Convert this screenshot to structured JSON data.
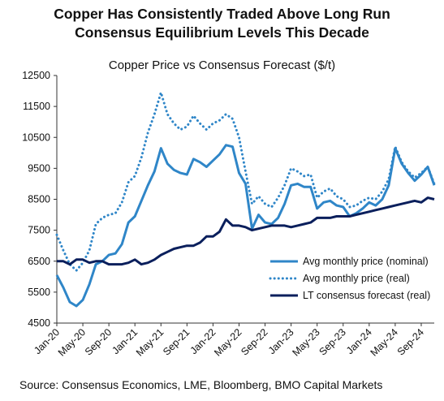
{
  "chart_data": {
    "type": "line",
    "title_line1": "Copper Has Consistently Traded Above Long Run",
    "title_line2": "Consensus Equilibrium Levels This Decade",
    "subtitle": "Copper Price vs Consensus Forecast ($/t)",
    "source": "Source: Consensus Economics, LME, Bloomberg, BMO Capital Markets",
    "x_start": "2020-01",
    "ylim": [
      4500,
      12500
    ],
    "yticks": [
      4500,
      5500,
      6500,
      7500,
      8500,
      9500,
      10500,
      11500,
      12500
    ],
    "xtick_labels": [
      "Jan-20",
      "May-20",
      "Sep-20",
      "Jan-21",
      "May-21",
      "Sep-21",
      "Jan-22",
      "May-22",
      "Sep-22",
      "Jan-23",
      "May-23",
      "Sep-23",
      "Jan-24",
      "May-24",
      "Sep-24"
    ],
    "legend_position": "bottom-right",
    "grid": false,
    "series": [
      {
        "name": "Avg monthly price (nominal)",
        "style": "solid",
        "color": "#2f86c8",
        "values": [
          6050,
          5650,
          5180,
          5050,
          5250,
          5750,
          6400,
          6500,
          6700,
          6750,
          7050,
          7750,
          7950,
          8450,
          8950,
          9400,
          10150,
          9650,
          9450,
          9350,
          9300,
          9800,
          9700,
          9550,
          9750,
          9950,
          10250,
          10200,
          9350,
          9000,
          7550,
          8000,
          7750,
          7700,
          7900,
          8350,
          8950,
          9000,
          8900,
          8900,
          8200,
          8400,
          8450,
          8300,
          8250,
          7950,
          8050,
          8200,
          8400,
          8300,
          8500,
          8950,
          10150,
          9650,
          9350,
          9100,
          9300,
          9550,
          8950
        ]
      },
      {
        "name": "Avg monthly price (real)",
        "style": "dotted",
        "color": "#2f86c8",
        "values": [
          7350,
          6850,
          6400,
          6200,
          6450,
          6850,
          7700,
          7900,
          8000,
          8050,
          8400,
          9050,
          9250,
          9850,
          10650,
          11250,
          11950,
          11250,
          10950,
          10750,
          10850,
          11200,
          10950,
          10750,
          10950,
          11050,
          11250,
          11100,
          10500,
          9400,
          8350,
          8600,
          8350,
          8250,
          8550,
          8950,
          9500,
          9400,
          9250,
          9300,
          8550,
          8750,
          8850,
          8600,
          8500,
          8250,
          8300,
          8450,
          8550,
          8500,
          8750,
          9150,
          10200,
          9700,
          9400,
          9200,
          9350,
          9550,
          9000
        ]
      },
      {
        "name": "LT consensus forecast (real)",
        "style": "solid",
        "color": "#0a1f5c",
        "values": [
          6500,
          6500,
          6400,
          6550,
          6550,
          6450,
          6500,
          6500,
          6400,
          6400,
          6400,
          6450,
          6550,
          6400,
          6450,
          6550,
          6700,
          6800,
          6900,
          6950,
          7000,
          7000,
          7100,
          7300,
          7300,
          7450,
          7850,
          7650,
          7650,
          7600,
          7500,
          7550,
          7600,
          7650,
          7650,
          7650,
          7600,
          7650,
          7700,
          7750,
          7900,
          7900,
          7900,
          7950,
          7950,
          7950,
          8000,
          8050,
          8100,
          8150,
          8200,
          8250,
          8300,
          8350,
          8400,
          8450,
          8400,
          8550,
          8500
        ]
      }
    ]
  }
}
